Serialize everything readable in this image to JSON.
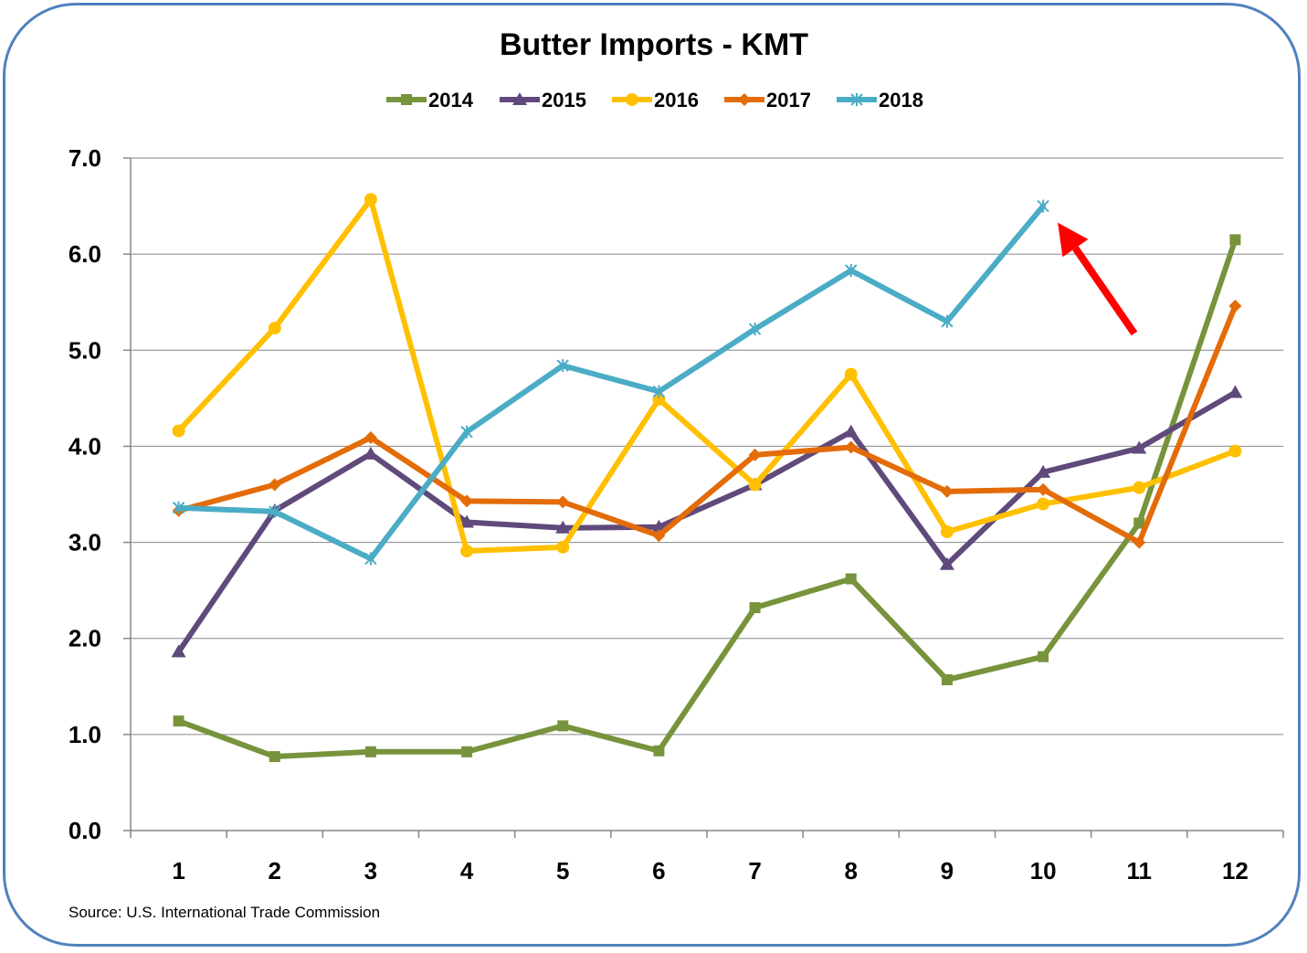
{
  "chart_data": {
    "type": "line",
    "title": "Butter Imports - KMT",
    "xlabel": "",
    "ylabel": "",
    "categories": [
      "1",
      "2",
      "3",
      "4",
      "5",
      "6",
      "7",
      "8",
      "9",
      "10",
      "11",
      "12"
    ],
    "ylim": [
      0,
      7
    ],
    "yticks": [
      "0.0",
      "1.0",
      "2.0",
      "3.0",
      "4.0",
      "5.0",
      "6.0",
      "7.0"
    ],
    "grid": true,
    "legend_position": "top",
    "series": [
      {
        "name": "2014",
        "color": "#77933C",
        "marker": "square",
        "values": [
          1.14,
          0.77,
          0.82,
          0.82,
          1.09,
          0.83,
          2.32,
          2.62,
          1.57,
          1.81,
          3.2,
          6.15
        ]
      },
      {
        "name": "2015",
        "color": "#604A7B",
        "marker": "triangle",
        "values": [
          1.86,
          3.33,
          3.92,
          3.21,
          3.15,
          3.16,
          3.6,
          4.15,
          2.77,
          3.73,
          3.98,
          4.56
        ]
      },
      {
        "name": "2016",
        "color": "#FFC000",
        "marker": "circle",
        "values": [
          4.16,
          5.23,
          6.57,
          2.91,
          2.95,
          4.49,
          3.6,
          4.75,
          3.11,
          3.4,
          3.57,
          3.95
        ]
      },
      {
        "name": "2017",
        "color": "#E36C09",
        "marker": "diamond",
        "values": [
          3.33,
          3.6,
          4.09,
          3.43,
          3.42,
          3.07,
          3.91,
          3.99,
          3.53,
          3.55,
          3.0,
          5.46
        ]
      },
      {
        "name": "2018",
        "color": "#4BACC6",
        "marker": "star",
        "values": [
          3.36,
          3.32,
          2.83,
          4.15,
          4.84,
          4.57,
          5.22,
          5.83,
          5.3,
          6.5,
          null,
          null
        ]
      }
    ],
    "annotation": {
      "type": "arrow",
      "color": "#FF0000",
      "points_to": "2018 month 10"
    }
  },
  "source": "Source: U.S. International Trade Commission"
}
